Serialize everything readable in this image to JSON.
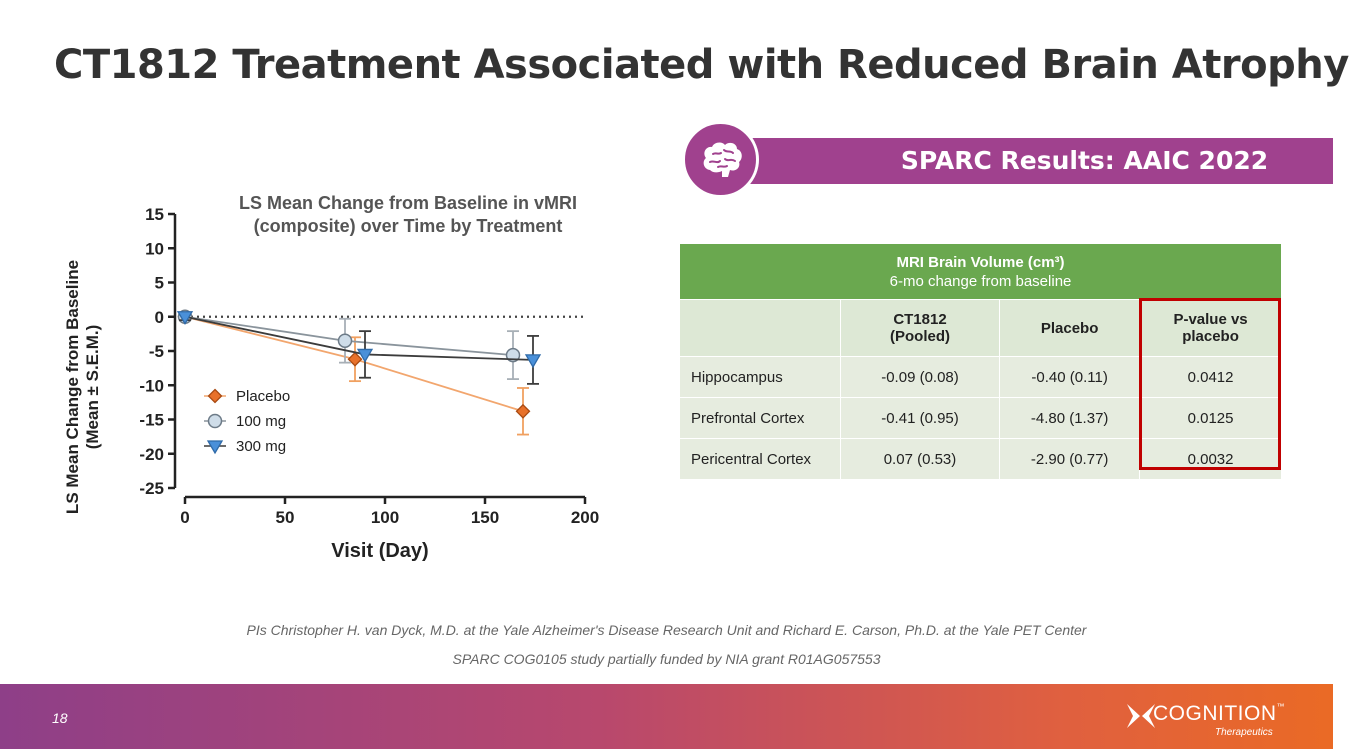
{
  "slide": {
    "title": "CT1812 Treatment Associated with Reduced Brain Atrophy",
    "banner": "SPARC Results: AAIC 2022",
    "page_number": "18",
    "credit_line1": "PIs Christopher H. van Dyck, M.D. at the Yale Alzheimer's Disease Research Unit and Richard E. Carson, Ph.D. at the Yale PET Center",
    "credit_line2": "SPARC COG0105 study partially funded by NIA grant R01AG057553",
    "logo_word": "COGNITION",
    "logo_tm": "™",
    "logo_sub": "Therapeutics"
  },
  "colors": {
    "banner": "#a0418e",
    "table_header": "#6aa84f",
    "pvalue_box": "#c00000",
    "placebo": "#e8712a",
    "dose100": "#7f8c99",
    "dose300": "#4a90d9"
  },
  "icons": {
    "banner_badge": "brain-icon",
    "logo": "cognition-x-logo"
  },
  "chart_data": {
    "type": "line",
    "title_line1": "LS Mean Change from Baseline in vMRI",
    "title_line2": "(composite) over Time by Treatment",
    "xlabel": "Visit (Day)",
    "ylabel_line1": "LS Mean Change from Baseline",
    "ylabel_line2": "(Mean ± S.E.M.)",
    "xlim": [
      0,
      200
    ],
    "ylim": [
      -25,
      15
    ],
    "x_ticks": [
      0,
      50,
      100,
      150,
      200
    ],
    "y_ticks": [
      15,
      10,
      5,
      0,
      -5,
      -10,
      -15,
      -20,
      -25
    ],
    "reference_line": 0,
    "legend_position": "left-middle",
    "series": [
      {
        "name": "Placebo",
        "marker": "diamond",
        "x": [
          0,
          85,
          169
        ],
        "y": [
          0,
          -6.2,
          -13.8
        ],
        "err": [
          0.5,
          3.2,
          3.4
        ]
      },
      {
        "name": "100 mg",
        "marker": "circle",
        "x": [
          0,
          80,
          164
        ],
        "y": [
          0,
          -3.5,
          -5.6
        ],
        "err": [
          0.5,
          3.2,
          3.5
        ]
      },
      {
        "name": "300 mg",
        "marker": "triangle-down",
        "x": [
          0,
          90,
          174
        ],
        "y": [
          0,
          -5.5,
          -6.3
        ],
        "err": [
          0.5,
          3.4,
          3.5
        ]
      }
    ]
  },
  "table": {
    "header_line1": "MRI Brain Volume (cm³)",
    "header_line2": "6-mo change from baseline",
    "columns": [
      "",
      "CT1812\n(Pooled)",
      "Placebo",
      "P-value vs\nplacebo"
    ],
    "col1_l1": "CT1812",
    "col1_l2": "(Pooled)",
    "col2": "Placebo",
    "col3_l1": "P-value vs",
    "col3_l2": "placebo",
    "rows": [
      {
        "label": "Hippocampus",
        "ct1812": "-0.09 (0.08)",
        "placebo": "-0.40 (0.11)",
        "pvalue": "0.0412"
      },
      {
        "label": "Prefrontal Cortex",
        "ct1812": "-0.41 (0.95)",
        "placebo": "-4.80 (1.37)",
        "pvalue": "0.0125"
      },
      {
        "label": "Pericentral Cortex",
        "ct1812": "0.07 (0.53)",
        "placebo": "-2.90 (0.77)",
        "pvalue": "0.0032"
      }
    ]
  }
}
